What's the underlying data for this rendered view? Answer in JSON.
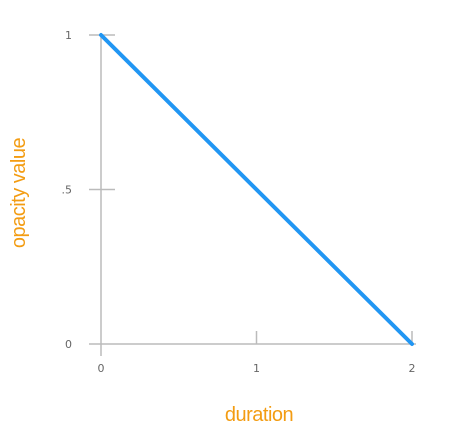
{
  "chart_data": {
    "type": "line",
    "title": "",
    "xlabel": "duration",
    "ylabel": "opacity value",
    "xlim": [
      0,
      2
    ],
    "ylim": [
      0,
      1
    ],
    "x_ticks": [
      {
        "value": 0,
        "label": "0"
      },
      {
        "value": 1,
        "label": "1"
      },
      {
        "value": 2,
        "label": "2"
      }
    ],
    "y_ticks": [
      {
        "value": 0,
        "label": "0"
      },
      {
        "value": 0.5,
        "label": ".5"
      },
      {
        "value": 1,
        "label": "1"
      }
    ],
    "series": [
      {
        "color": "#2196f3",
        "points": [
          {
            "x": 0,
            "y": 1
          },
          {
            "x": 2,
            "y": 0
          }
        ]
      }
    ],
    "grid": false,
    "colors": {
      "axis": "#bbbbbb",
      "label": "#f39c12",
      "tick_text": "#666666"
    }
  }
}
